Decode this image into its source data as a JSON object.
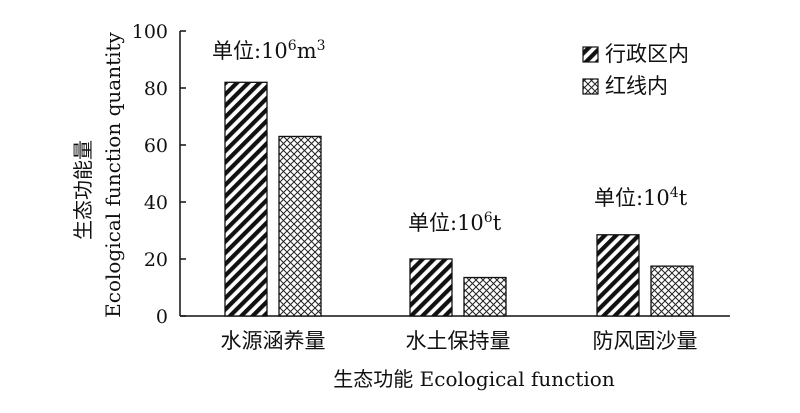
{
  "chart_data": {
    "type": "bar",
    "title": "",
    "xlabel": "生态功能 Ecological function",
    "ylabel_cn": "生态功能量",
    "ylabel_en": "Ecological function quantity",
    "ylim": [
      0,
      100
    ],
    "yticks": [
      0,
      20,
      40,
      60,
      80,
      100
    ],
    "grid": false,
    "legend_position": "top-right",
    "categories": [
      "水源涵养量",
      "水土保持量",
      "防风固沙量"
    ],
    "series": [
      {
        "name": "行政区内",
        "pattern": "diagonal-hatch",
        "values": [
          82,
          20,
          28.5
        ]
      },
      {
        "name": "红线内",
        "pattern": "crosshatch",
        "values": [
          63,
          13.5,
          17.5
        ]
      }
    ],
    "annotations": [
      {
        "category_index": 0,
        "prefix": "单位:10",
        "sup": "6",
        "suffix": "m",
        "sup2": "3"
      },
      {
        "category_index": 1,
        "prefix": "单位:10",
        "sup": "6",
        "suffix": "t",
        "sup2": ""
      },
      {
        "category_index": 2,
        "prefix": "单位:10",
        "sup": "4",
        "suffix": "t",
        "sup2": ""
      }
    ]
  }
}
